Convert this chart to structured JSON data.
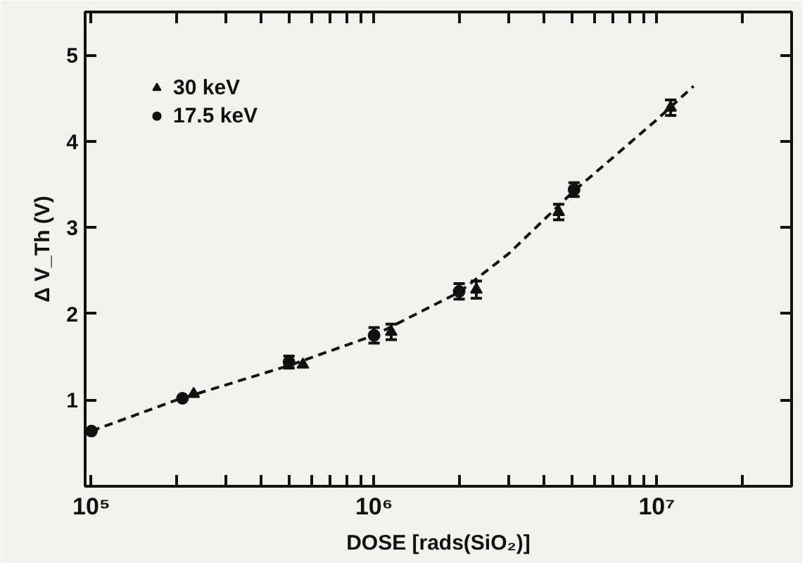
{
  "chart_data": {
    "type": "scatter",
    "xlabel": "DOSE [rads(SiO₂)]",
    "ylabel": "Δ V_Th (V)",
    "log": "x",
    "xlim": [
      95000,
      30000000
    ],
    "ylim": [
      0,
      5.5
    ],
    "xticks": [
      {
        "value": 100000,
        "label": "10⁵"
      },
      {
        "value": 200000,
        "label": null
      },
      {
        "value": 300000,
        "label": null
      },
      {
        "value": 400000,
        "label": null
      },
      {
        "value": 500000,
        "label": null
      },
      {
        "value": 600000,
        "label": null
      },
      {
        "value": 700000,
        "label": null
      },
      {
        "value": 800000,
        "label": null
      },
      {
        "value": 900000,
        "label": null
      },
      {
        "value": 1000000,
        "label": "10⁶"
      },
      {
        "value": 2000000,
        "label": null
      },
      {
        "value": 3000000,
        "label": null
      },
      {
        "value": 4000000,
        "label": null
      },
      {
        "value": 5000000,
        "label": null
      },
      {
        "value": 6000000,
        "label": null
      },
      {
        "value": 7000000,
        "label": null
      },
      {
        "value": 8000000,
        "label": null
      },
      {
        "value": 9000000,
        "label": null
      },
      {
        "value": 10000000,
        "label": "10⁷"
      },
      {
        "value": 20000000,
        "label": null
      }
    ],
    "yticks": [
      1,
      2,
      3,
      4,
      5
    ],
    "grid": false,
    "legend": "top left",
    "series": [
      {
        "name": "30 keV",
        "marker": "triangle",
        "color": "#111111",
        "x": [
          230000,
          560000,
          1150000,
          2300000,
          4500000,
          11200000
        ],
        "values": [
          1.07,
          1.41,
          1.79,
          2.28,
          3.18,
          4.39
        ],
        "errors": [
          null,
          null,
          0.09,
          0.1,
          0.09,
          0.09
        ]
      },
      {
        "name": "17.5 keV",
        "marker": "circle",
        "color": "#111111",
        "x": [
          100000,
          210000,
          500000,
          1000000,
          2000000,
          5100000
        ],
        "values": [
          0.64,
          1.02,
          1.44,
          1.75,
          2.26,
          3.44
        ],
        "errors": [
          null,
          null,
          0.07,
          0.09,
          0.09,
          0.08
        ]
      },
      {
        "type": "line",
        "line_style": "dashed",
        "color": "#111111",
        "x": [
          100000,
          200000,
          500000,
          1000000,
          2000000,
          3000000,
          5000000,
          10000000,
          13500000
        ],
        "values": [
          0.64,
          1.0,
          1.4,
          1.75,
          2.25,
          2.7,
          3.4,
          4.25,
          4.64
        ]
      }
    ]
  }
}
